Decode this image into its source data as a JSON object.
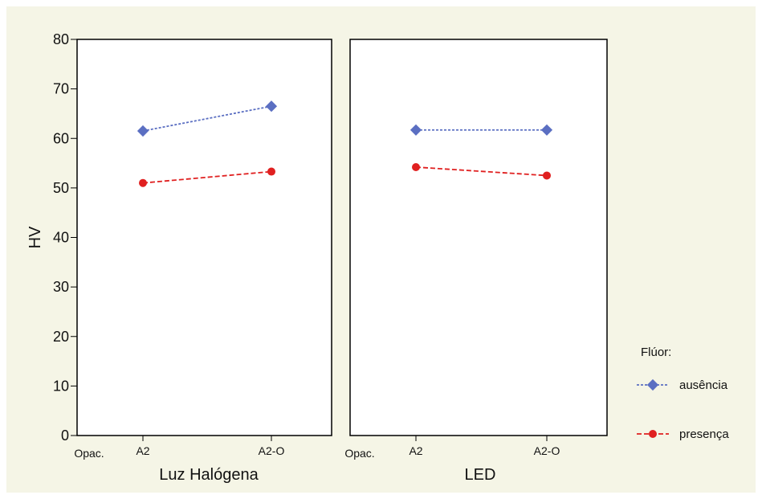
{
  "chart_data": {
    "type": "line",
    "ylabel": "HV",
    "ylim": [
      0,
      80
    ],
    "yticks": [
      0,
      10,
      20,
      30,
      40,
      50,
      60,
      70,
      80
    ],
    "grid": false,
    "legend": {
      "title": "Flúor:",
      "placement": "right",
      "entries": [
        "ausência",
        "presença"
      ]
    },
    "series_style": {
      "ausência": {
        "color": "#5b6fc2",
        "marker": "diamond-square",
        "dash": "3,2"
      },
      "presença": {
        "color": "#e02020",
        "marker": "circle",
        "dash": "6,3"
      }
    },
    "panels": [
      {
        "xlabel": "Luz Halógena",
        "x_axis_name": "Opac.",
        "categories": [
          "A2",
          "A2-O"
        ],
        "series": [
          {
            "name": "ausência",
            "values": [
              61.5,
              66.5
            ]
          },
          {
            "name": "presença",
            "values": [
              51.0,
              53.3
            ]
          }
        ]
      },
      {
        "xlabel": "LED",
        "x_axis_name": "Opac.",
        "categories": [
          "A2",
          "A2-O"
        ],
        "series": [
          {
            "name": "ausência",
            "values": [
              61.7,
              61.7
            ]
          },
          {
            "name": "presença",
            "values": [
              54.2,
              52.5
            ]
          }
        ]
      }
    ]
  }
}
